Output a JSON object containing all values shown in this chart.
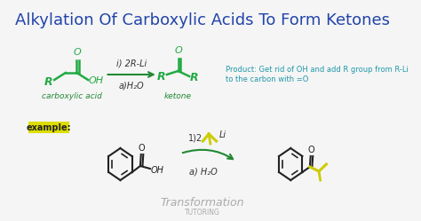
{
  "title": "Alkylation Of Carboxylic Acids To Form Ketones",
  "title_color": "#2244aa",
  "title_fontsize": 13,
  "bg_color": "#f5f5f5",
  "label_carboxylic": "carboxylic acid",
  "label_ketone": "ketone",
  "label_example": "example:",
  "example_bg": "#dddd00",
  "reagent1": "i) 2R-Li",
  "reagent2": "a)H₂O",
  "reagent3": "1)2",
  "reagent4": "Li",
  "reagent5": "a) H₂O",
  "product_text1": "Product: Get rid of OH and add R group from R-Li",
  "product_text2": "to the carbon with =O",
  "product_color": "#2299aa",
  "green_color": "#22aa44",
  "dark_green": "#228833",
  "arrow_color": "#228833",
  "watermark1": "Transformation",
  "watermark2": "TUTORING",
  "watermark_color": "#aaaaaa"
}
